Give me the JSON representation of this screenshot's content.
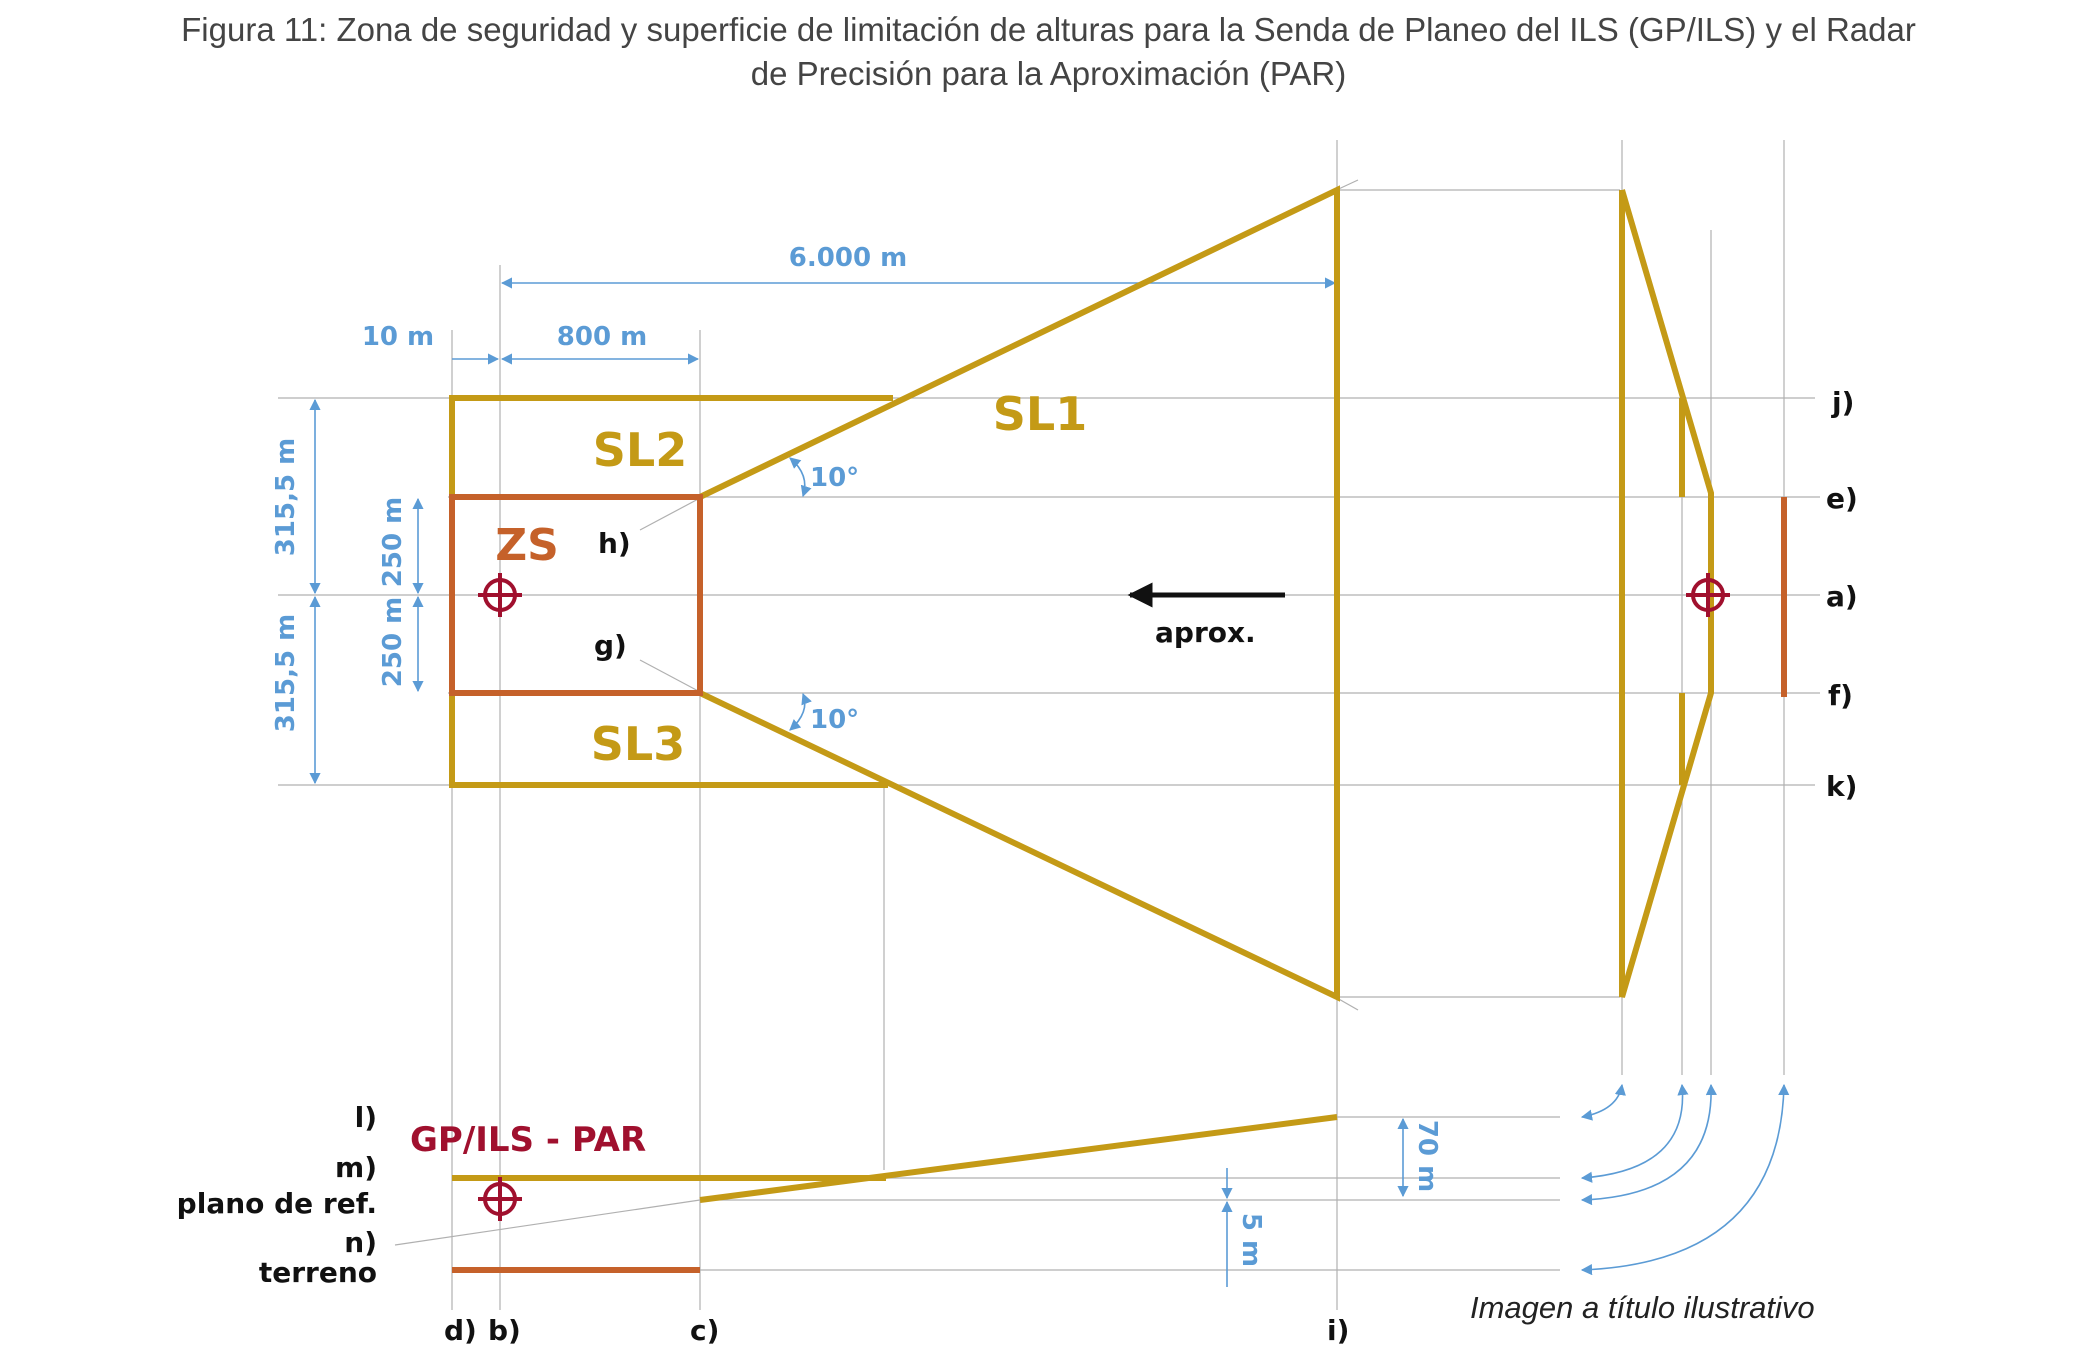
{
  "title": {
    "line1": "Figura 11: Zona de seguridad y superficie de limitación de alturas para la Senda de Planeo del ILS (GP/ILS) y el Radar",
    "line2": "de Precisión para la Aproximación (PAR)"
  },
  "dimensions": {
    "d6000": "6.000 m",
    "d10": "10 m",
    "d800": "800 m",
    "d315a": "315,5 m",
    "d315b": "315,5 m",
    "d250a": "250 m",
    "d250b": "250 m",
    "angle_top": "10°",
    "angle_bottom": "10°",
    "d70": "70 m",
    "d5": "5 m"
  },
  "zones": {
    "sl1": "SL1",
    "sl2": "SL2",
    "sl3": "SL3",
    "zs": "ZS",
    "profile": "GP/ILS - PAR"
  },
  "labels": {
    "h": "h)",
    "g": "g)",
    "aprox": "aprox.",
    "j": "j)",
    "e": "e)",
    "a": "a)",
    "f": "f)",
    "k": "k)",
    "l": "l)",
    "m": "m)",
    "plano": "plano de ref.",
    "n": "n)",
    "terreno": "terreno",
    "d": "d)",
    "b": "b)",
    "c": "c)",
    "i": "i)"
  },
  "note": "Imagen a título ilustrativo",
  "colors": {
    "gold": "#c49a16",
    "orange": "#c5612a",
    "maroon": "#a0102e",
    "dimension": "#5b9bd5",
    "guide": "#9a9a9a"
  }
}
